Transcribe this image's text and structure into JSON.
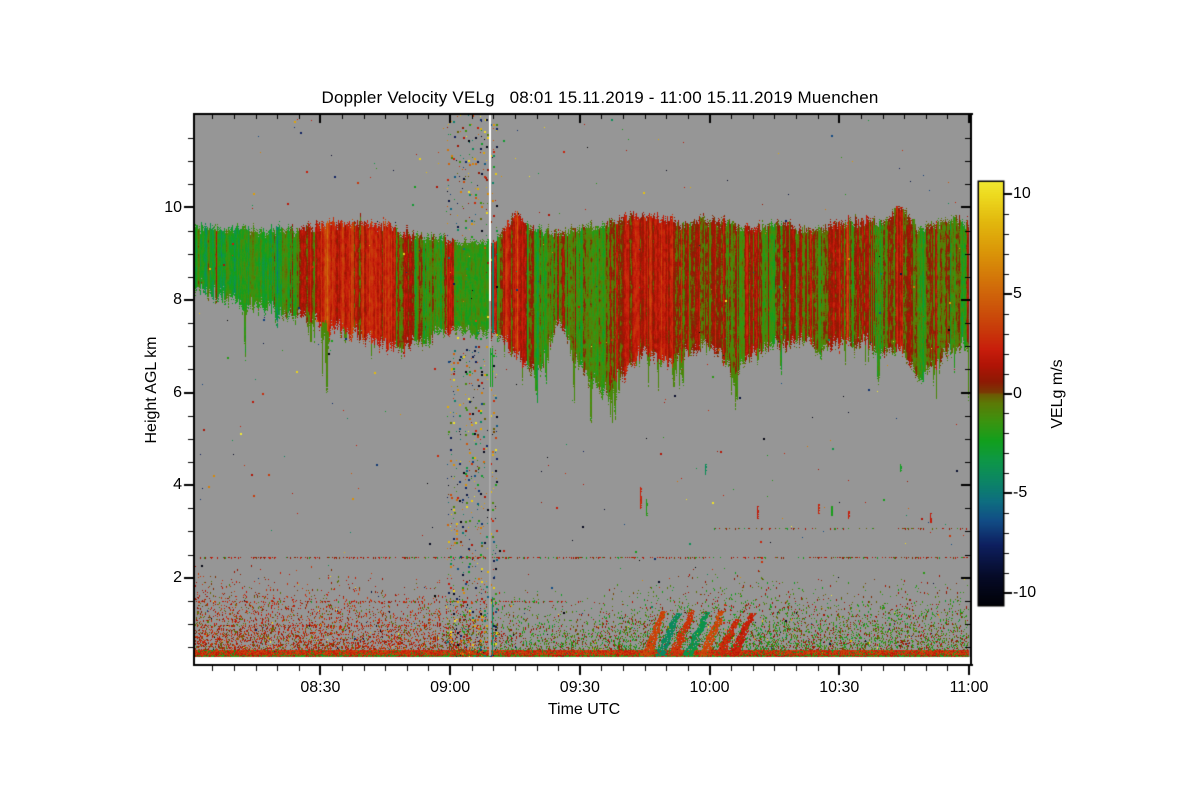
{
  "chart_data": {
    "type": "heatmap",
    "title": "Doppler Velocity VELg",
    "time_range": "08:01 15.11.2019 - 11:00 15.11.2019",
    "site": "Muenchen",
    "title_full": "Doppler Velocity VELg   08:01 15.11.2019 - 11:00 15.11.2019 Muenchen",
    "x_axis": {
      "label": "Time UTC",
      "start_minute": 1,
      "end_minute": 180,
      "minor_tick_minutes": 5,
      "ticks": [
        {
          "label": "08:30",
          "minute": 30
        },
        {
          "label": "09:00",
          "minute": 60
        },
        {
          "label": "09:30",
          "minute": 90
        },
        {
          "label": "10:00",
          "minute": 120
        },
        {
          "label": "10:30",
          "minute": 150
        },
        {
          "label": "11:00",
          "minute": 180
        }
      ]
    },
    "y_axis": {
      "label": "Height AGL km",
      "min_km": 0.12,
      "max_km": 12,
      "minor_tick_km": 0.5,
      "ticks": [
        {
          "label": "2",
          "km": 2
        },
        {
          "label": "4",
          "km": 4
        },
        {
          "label": "6",
          "km": 6
        },
        {
          "label": "8",
          "km": 8
        },
        {
          "label": "10",
          "km": 10
        }
      ]
    },
    "colorbar": {
      "label": "VELg m/s",
      "min": -10.6,
      "max": 10.6,
      "minor_tick_step": 1,
      "ticks": [
        {
          "label": "10",
          "value": 10
        },
        {
          "label": "5",
          "value": 5
        },
        {
          "label": "0",
          "value": 0
        },
        {
          "label": "-5",
          "value": -5
        },
        {
          "label": "-10",
          "value": -10
        }
      ],
      "stops": [
        [
          -11.0,
          "#000000"
        ],
        [
          -9.2,
          "#060b28"
        ],
        [
          -7.6,
          "#0e2060"
        ],
        [
          -6.4,
          "#124d86"
        ],
        [
          -5.4,
          "#0e6f80"
        ],
        [
          -4.5,
          "#0c8468"
        ],
        [
          -3.4,
          "#0e9748"
        ],
        [
          -2.4,
          "#12a01e"
        ],
        [
          -1.4,
          "#3c9410"
        ],
        [
          -0.5,
          "#5c7a06"
        ],
        [
          -0.05,
          "#6e5a04"
        ],
        [
          0.05,
          "#7a3a04"
        ],
        [
          0.6,
          "#8f1a04"
        ],
        [
          1.4,
          "#b01406"
        ],
        [
          2.2,
          "#c81e0c"
        ],
        [
          3.2,
          "#c83a0a"
        ],
        [
          4.2,
          "#cc520a"
        ],
        [
          5.5,
          "#d2700a"
        ],
        [
          7.0,
          "#da9408"
        ],
        [
          8.6,
          "#e2b80e"
        ],
        [
          10.0,
          "#eedc20"
        ],
        [
          11.0,
          "#f4f03c"
        ]
      ]
    },
    "colors": {
      "background": "#ffffff",
      "no_data": "#969696",
      "frame": "#000000",
      "dropout_line_upper": "#ffffff",
      "dropout_line_lower": "#acacac"
    },
    "features": {
      "cloud_band": {
        "t": [
          1,
          10,
          20,
          26,
          32,
          40,
          47,
          52,
          57,
          61,
          70,
          72,
          75,
          80,
          85,
          90,
          95,
          100,
          105,
          110,
          115,
          120,
          125,
          130,
          135,
          140,
          145,
          150,
          155,
          160,
          164,
          168,
          172,
          176,
          180
        ],
        "base_km": [
          8.15,
          7.95,
          7.75,
          7.6,
          7.4,
          7.15,
          6.95,
          7.0,
          7.2,
          7.3,
          7.3,
          7.2,
          6.8,
          6.3,
          7.5,
          6.5,
          6.0,
          6.4,
          6.9,
          6.6,
          6.9,
          7.0,
          6.4,
          6.8,
          7.0,
          7.1,
          6.9,
          7.0,
          7.1,
          6.8,
          6.9,
          6.2,
          6.6,
          6.9,
          7.0
        ],
        "top_km": [
          9.65,
          9.6,
          9.55,
          9.6,
          9.7,
          9.75,
          9.6,
          9.45,
          9.4,
          9.35,
          9.35,
          9.5,
          9.9,
          9.6,
          9.5,
          9.6,
          9.7,
          9.8,
          9.9,
          9.8,
          9.7,
          9.8,
          9.7,
          9.6,
          9.7,
          9.6,
          9.6,
          9.7,
          9.8,
          9.7,
          10.1,
          9.6,
          9.7,
          9.8,
          9.7
        ],
        "vel_ms": [
          -2.2,
          -2.0,
          -1.5,
          0.5,
          1.8,
          2.2,
          1.6,
          -0.5,
          -1.6,
          -1.7,
          -1.7,
          1.5,
          1.8,
          -1.0,
          -0.5,
          -1.5,
          -0.8,
          1.2,
          2.2,
          1.8,
          0.5,
          1.0,
          -0.6,
          0.8,
          -0.4,
          0.6,
          -0.9,
          1.4,
          0.3,
          -0.7,
          1.9,
          -1.3,
          0.4,
          -0.9,
          -0.3
        ]
      },
      "noise_column": {
        "t_start_minute": 59.3,
        "t_end_minute": 70.8,
        "cloud_base_km": 7.25,
        "cloud_top_km": 9.32,
        "cloud_vel_ms": -1.6,
        "speckle_density": 0.28,
        "bottom_speckle_density": 0.48,
        "white_line_minute": 69.0,
        "teal_line_minute": 69.8,
        "teal_line_vel": -4.6,
        "green_line_minute": 69.15,
        "green_line_vel": -2.4
      },
      "boundary_layer": {
        "t": [
          1,
          30,
          60,
          75,
          90,
          105,
          120,
          135,
          150,
          165,
          180
        ],
        "top_km": [
          1.7,
          1.5,
          1.3,
          1.1,
          1.1,
          1.35,
          1.5,
          1.45,
          1.3,
          1.35,
          1.4
        ],
        "left_vel_bias": 1.5,
        "mid_vel_bias": 0.3,
        "right_vel_bias": -0.7,
        "green_patch": {
          "t0": 100,
          "t1": 138,
          "below_km": 0.95,
          "vel": -1.2
        },
        "surface_line_top_km": 0.44,
        "surface_line_bottom_km": 0.29
      },
      "chevron_updrafts": {
        "t_center": [
          107,
          110.3,
          113.6,
          117,
          120.5,
          124,
          127.5
        ],
        "vel_ms": [
          3.6,
          -4.2,
          3.0,
          -3.6,
          3.8,
          2.6,
          2.2
        ],
        "h_bottom_km": 0.32,
        "h_top_km": 1.2
      },
      "dotted_layers": [
        {
          "h_km": 2.45,
          "t0": 1,
          "t1": 180,
          "density": 0.42,
          "vel": 1.2
        },
        {
          "h_km": 1.5,
          "t0": 1,
          "t1": 91,
          "density": 0.3,
          "vel": 1.5
        },
        {
          "h_km": 3.08,
          "t0": 117,
          "t1": 180,
          "density": 0.25,
          "vel": 0.8
        },
        {
          "h_km": 0.98,
          "t0": 1,
          "t1": 58,
          "density": 0.32,
          "vel": 2.0
        }
      ],
      "mid_level_dashes": [
        {
          "t": 104,
          "h_km": 3.5,
          "len_km": 0.45,
          "vel": 2.4
        },
        {
          "t": 105.2,
          "h_km": 3.35,
          "len_km": 0.35,
          "vel": -2.0
        },
        {
          "t": 119,
          "h_km": 4.25,
          "len_km": 0.2,
          "vel": -4.0
        },
        {
          "t": 131,
          "h_km": 3.3,
          "len_km": 0.25,
          "vel": 2.0
        },
        {
          "t": 145,
          "h_km": 3.4,
          "len_km": 0.2,
          "vel": 2.5
        },
        {
          "t": 148,
          "h_km": 3.35,
          "len_km": 0.2,
          "vel": -2.2
        },
        {
          "t": 152,
          "h_km": 3.3,
          "len_km": 0.15,
          "vel": 2.2
        },
        {
          "t": 164,
          "h_km": 4.3,
          "len_km": 0.15,
          "vel": -2.5
        },
        {
          "t": 171,
          "h_km": 3.2,
          "len_km": 0.2,
          "vel": 2.0
        }
      ],
      "sparse_speckle_count": 380
    }
  }
}
